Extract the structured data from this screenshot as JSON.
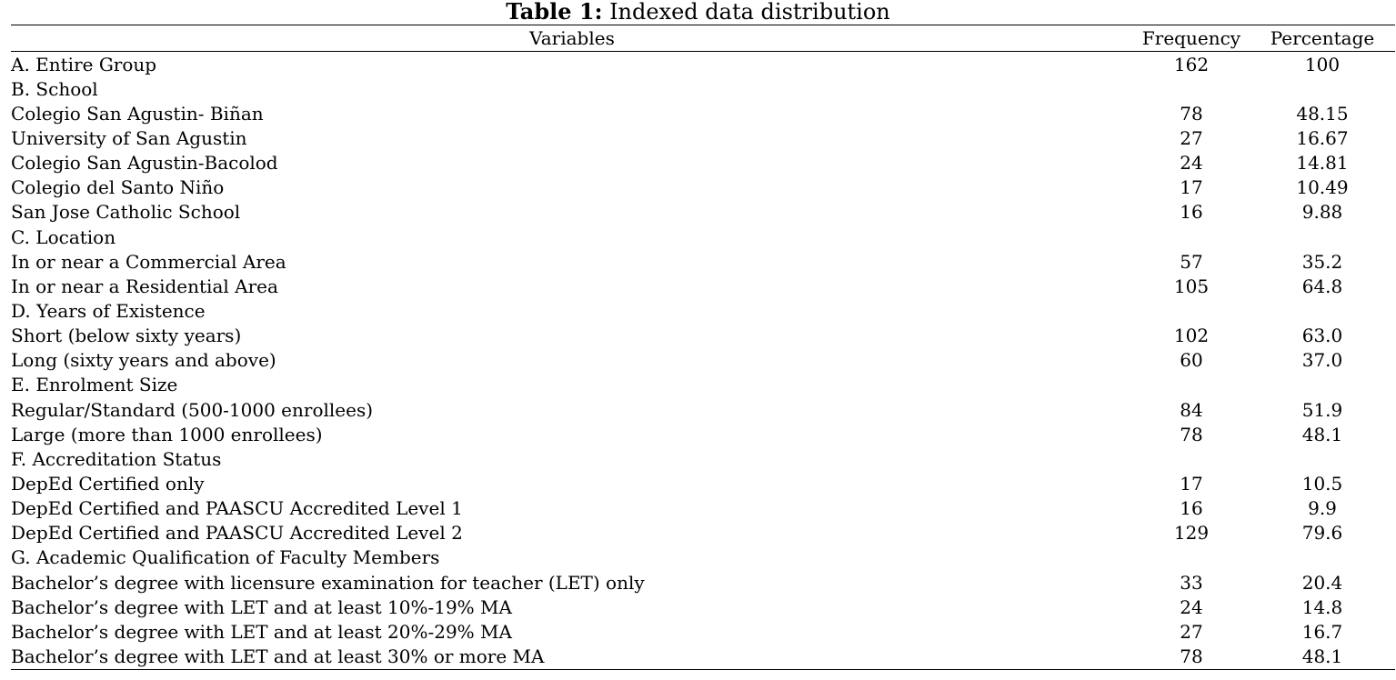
{
  "caption": {
    "label": "Table 1:",
    "title": " Indexed data distribution"
  },
  "headers": {
    "variables": "Variables",
    "frequency": "Frequency",
    "percentage": "Percentage"
  },
  "rows": [
    {
      "kind": "category",
      "label": "A. Entire Group",
      "frequency": "162",
      "percentage": "100"
    },
    {
      "kind": "category",
      "label": "B. School",
      "frequency": "",
      "percentage": ""
    },
    {
      "kind": "item",
      "label": "Colegio San Agustin- Biñan",
      "frequency": "78",
      "percentage": "48.15"
    },
    {
      "kind": "item",
      "label": "University of San Agustin",
      "frequency": "27",
      "percentage": "16.67"
    },
    {
      "kind": "item",
      "label": "Colegio San Agustin-Bacolod",
      "frequency": "24",
      "percentage": "14.81"
    },
    {
      "kind": "item",
      "label": "Colegio del Santo Niño",
      "frequency": "17",
      "percentage": "10.49"
    },
    {
      "kind": "item",
      "label": "San Jose Catholic School",
      "frequency": "16",
      "percentage": "9.88"
    },
    {
      "kind": "category",
      "label": "C. Location",
      "frequency": "",
      "percentage": ""
    },
    {
      "kind": "item",
      "label": "In or near a Commercial Area",
      "frequency": "57",
      "percentage": "35.2"
    },
    {
      "kind": "item",
      "label": "In or near a Residential Area",
      "frequency": "105",
      "percentage": "64.8"
    },
    {
      "kind": "category",
      "label": "D. Years of Existence",
      "frequency": "",
      "percentage": ""
    },
    {
      "kind": "item",
      "label": "Short (below sixty years)",
      "frequency": "102",
      "percentage": "63.0"
    },
    {
      "kind": "item",
      "label": "Long (sixty years and above)",
      "frequency": "60",
      "percentage": "37.0"
    },
    {
      "kind": "category",
      "label": "E. Enrolment Size",
      "frequency": "",
      "percentage": ""
    },
    {
      "kind": "item",
      "label": "Regular/Standard (500-1000 enrollees)",
      "frequency": "84",
      "percentage": "51.9"
    },
    {
      "kind": "item",
      "label": "Large (more than 1000 enrollees)",
      "frequency": "78",
      "percentage": "48.1"
    },
    {
      "kind": "category",
      "label": "F. Accreditation Status",
      "frequency": "",
      "percentage": ""
    },
    {
      "kind": "item",
      "label": "DepEd Certified only",
      "frequency": "17",
      "percentage": "10.5"
    },
    {
      "kind": "item",
      "label": "DepEd Certified and PAASCU Accredited Level 1",
      "frequency": "16",
      "percentage": "9.9"
    },
    {
      "kind": "item",
      "label": "DepEd Certified and PAASCU Accredited Level 2",
      "frequency": "129",
      "percentage": "79.6"
    },
    {
      "kind": "category",
      "label": "G. Academic Qualification of Faculty Members",
      "frequency": "",
      "percentage": ""
    },
    {
      "kind": "item",
      "label": "Bachelor’s degree with licensure examination for teacher (LET) only",
      "frequency": "33",
      "percentage": "20.4"
    },
    {
      "kind": "item",
      "label": "Bachelor’s degree with LET and at least 10%-19% MA",
      "frequency": "24",
      "percentage": "14.8"
    },
    {
      "kind": "item",
      "label": "Bachelor’s degree with LET and at least 20%-29% MA",
      "frequency": "27",
      "percentage": "16.7"
    },
    {
      "kind": "item",
      "label": "Bachelor’s degree with LET and at least 30% or more MA",
      "frequency": "78",
      "percentage": "48.1"
    }
  ]
}
